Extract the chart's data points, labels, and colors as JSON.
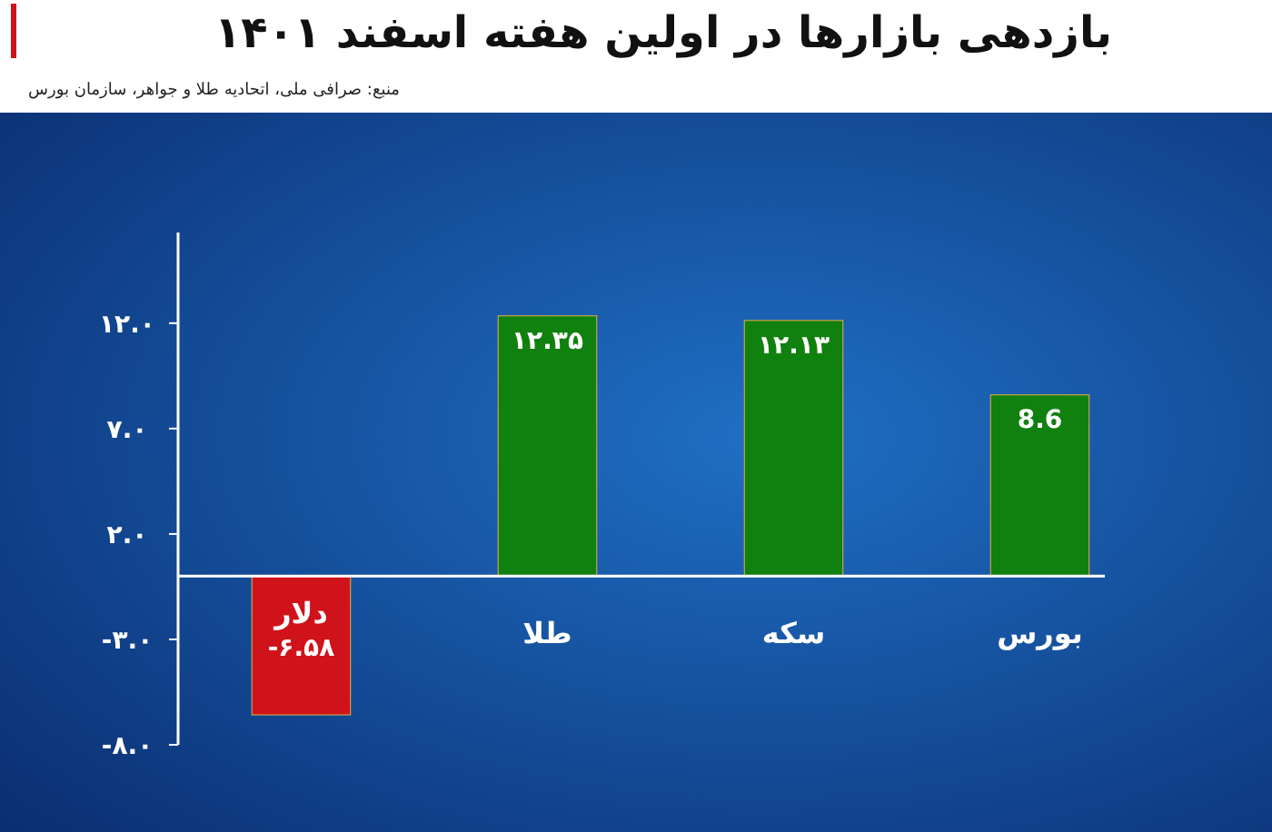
{
  "chart_data": {
    "type": "bar",
    "title": "بازدهی بازارها در اولین هفته اسفند ۱۴۰۱",
    "subtitle": "منبع: صرافی ملی، اتحادیه طلا و جواهر، سازمان بورس",
    "categories": [
      "دلار",
      "طلا",
      "سکه",
      "بورس"
    ],
    "values": [
      -6.58,
      12.35,
      12.13,
      8.6
    ],
    "colors": [
      "#d0121a",
      "#10800f",
      "#10800f",
      "#10800f"
    ],
    "value_labels": [
      "-۶.۵۸",
      "۱۲.۳۵",
      "۱۲.۱۳",
      "8.6"
    ],
    "ylim": [
      -8,
      16.3
    ],
    "yticks": [
      {
        "value": 12,
        "label": "۱۲.۰"
      },
      {
        "value": 7,
        "label": "۷.۰"
      },
      {
        "value": 2,
        "label": "۲.۰"
      },
      {
        "value": -3,
        "label": "-۳.۰"
      },
      {
        "value": -8,
        "label": "-۸.۰"
      }
    ],
    "grid": false
  }
}
